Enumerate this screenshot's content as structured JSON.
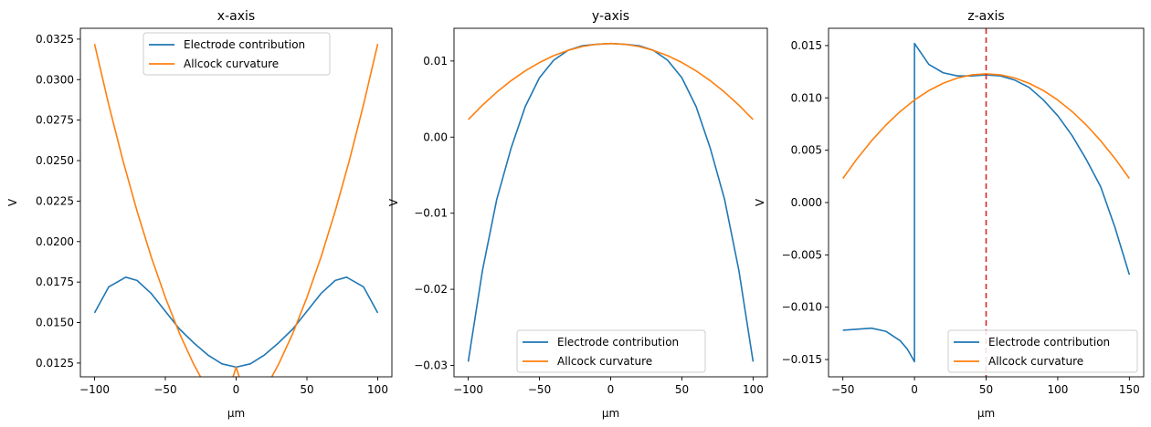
{
  "chart_data": [
    {
      "type": "line",
      "title": "x-axis",
      "xlabel": "μm",
      "ylabel": "V",
      "xlim": [
        -110,
        110
      ],
      "ylim": [
        0.01165,
        0.03317
      ],
      "xticks": [
        -100,
        -50,
        0,
        50,
        100
      ],
      "xtick_labels": [
        "−100",
        "−50",
        "0",
        "50",
        "100"
      ],
      "yticks": [
        0.0125,
        0.015,
        0.0175,
        0.02,
        0.0225,
        0.025,
        0.0275,
        0.03,
        0.0325
      ],
      "ytick_labels": [
        "0.0125",
        "0.0150",
        "0.0175",
        "0.0200",
        "0.0225",
        "0.0250",
        "0.0275",
        "0.0300",
        "0.0325"
      ],
      "legend_position": "top-center",
      "series": [
        {
          "name": "Electrode contribution",
          "color": "#1f77b4",
          "x": [
            -100,
            -90,
            -78,
            -70,
            -60,
            -50,
            -40,
            -30,
            -20,
            -10,
            0,
            10,
            20,
            30,
            40,
            50,
            60,
            70,
            78,
            90,
            100
          ],
          "y": [
            0.0156,
            0.0172,
            0.0178,
            0.0176,
            0.0168,
            0.0157,
            0.0146,
            0.01375,
            0.013,
            0.01245,
            0.01225,
            0.01245,
            0.013,
            0.01375,
            0.0146,
            0.0157,
            0.0168,
            0.0176,
            0.0178,
            0.0172,
            0.0156
          ]
        },
        {
          "name": "Allcock curvature",
          "color": "#ff7f0e",
          "x": [
            -100,
            -90,
            -80,
            -70,
            -60,
            -50,
            -40,
            -30,
            -20,
            -10,
            0,
            10,
            20,
            30,
            40,
            50,
            60,
            70,
            80,
            90,
            100
          ],
          "y": [
            0.0322,
            0.02846,
            0.02502,
            0.02189,
            0.01906,
            0.01655,
            0.01433,
            0.01243,
            0.01082,
            0.00953,
            0.01224,
            0.00953,
            0.01082,
            0.01243,
            0.01433,
            0.01655,
            0.01906,
            0.02189,
            0.02502,
            0.02846,
            0.0322
          ]
        }
      ]
    },
    {
      "type": "line",
      "title": "y-axis",
      "xlabel": "μm",
      "ylabel": "V",
      "xlim": [
        -110,
        110
      ],
      "ylim": [
        -0.0315,
        0.0143
      ],
      "xticks": [
        -100,
        -50,
        0,
        50,
        100
      ],
      "xtick_labels": [
        "−100",
        "−50",
        "0",
        "50",
        "100"
      ],
      "yticks": [
        -0.03,
        -0.02,
        -0.01,
        0.0,
        0.01
      ],
      "ytick_labels": [
        "−0.03",
        "−0.02",
        "−0.01",
        "0.00",
        "0.01"
      ],
      "legend_position": "lower-center",
      "series": [
        {
          "name": "Electrode contribution",
          "color": "#1f77b4",
          "x": [
            -100,
            -90,
            -80,
            -70,
            -60,
            -50,
            -40,
            -30,
            -20,
            -10,
            0,
            10,
            20,
            30,
            40,
            50,
            60,
            70,
            80,
            90,
            100
          ],
          "y": [
            -0.0295,
            -0.0175,
            -0.0082,
            -0.0015,
            0.004,
            0.0078,
            0.0101,
            0.0114,
            0.012,
            0.0122,
            0.0123,
            0.0122,
            0.012,
            0.0114,
            0.0101,
            0.0078,
            0.004,
            -0.0015,
            -0.0082,
            -0.0175,
            -0.0295
          ]
        },
        {
          "name": "Allcock curvature",
          "color": "#ff7f0e",
          "x": [
            -100,
            -90,
            -80,
            -70,
            -60,
            -50,
            -40,
            -30,
            -20,
            -10,
            0,
            10,
            20,
            30,
            40,
            50,
            60,
            70,
            80,
            90,
            100
          ],
          "y": [
            0.0023,
            0.0042,
            0.0059,
            0.0074,
            0.0087,
            0.0098,
            0.0107,
            0.0114,
            0.0119,
            0.0122,
            0.0123,
            0.0122,
            0.0119,
            0.0114,
            0.0107,
            0.0098,
            0.0087,
            0.0074,
            0.0059,
            0.0042,
            0.0023
          ]
        }
      ]
    },
    {
      "type": "line",
      "title": "z-axis",
      "xlabel": "μm",
      "ylabel": "V",
      "xlim": [
        -60,
        160
      ],
      "ylim": [
        -0.01665,
        0.01665
      ],
      "xticks": [
        -50,
        0,
        50,
        100,
        150
      ],
      "xtick_labels": [
        "−50",
        "0",
        "50",
        "100",
        "150"
      ],
      "yticks": [
        -0.015,
        -0.01,
        -0.005,
        0.0,
        0.005,
        0.01,
        0.015
      ],
      "ytick_labels": [
        "−0.015",
        "−0.010",
        "−0.005",
        "0.000",
        "0.005",
        "0.010",
        "0.015"
      ],
      "legend_position": "lower-right",
      "vline": {
        "x": 50,
        "color": "#d62728"
      },
      "series": [
        {
          "name": "Electrode contribution",
          "color": "#1f77b4",
          "x": [
            -50,
            -40,
            -30,
            -20,
            -10,
            -5,
            0,
            0,
            5,
            10,
            20,
            30,
            40,
            50,
            60,
            70,
            80,
            90,
            100,
            110,
            120,
            130,
            140,
            150
          ],
          "y": [
            -0.0122,
            -0.0121,
            -0.012,
            -0.0123,
            -0.0132,
            -0.014,
            -0.0152,
            0.0152,
            0.0142,
            0.0132,
            0.0124,
            0.0121,
            0.0121,
            0.0122,
            0.0121,
            0.0117,
            0.011,
            0.0098,
            0.0083,
            0.0064,
            0.0041,
            0.0015,
            -0.0024,
            -0.0069
          ]
        },
        {
          "name": "Allcock curvature",
          "color": "#ff7f0e",
          "x": [
            -50,
            -40,
            -30,
            -20,
            -10,
            0,
            10,
            20,
            30,
            40,
            50,
            60,
            70,
            80,
            90,
            100,
            110,
            120,
            130,
            140,
            150
          ],
          "y": [
            0.0023,
            0.0042,
            0.0059,
            0.0074,
            0.0087,
            0.0098,
            0.0107,
            0.0114,
            0.0119,
            0.0122,
            0.0123,
            0.0122,
            0.0119,
            0.0114,
            0.0107,
            0.0098,
            0.0087,
            0.0074,
            0.0059,
            0.0042,
            0.0023
          ]
        }
      ]
    }
  ]
}
